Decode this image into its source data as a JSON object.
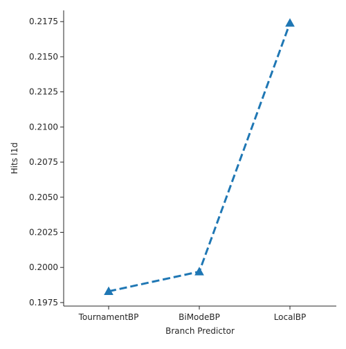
{
  "chart_data": {
    "type": "line",
    "title": "",
    "xlabel": "Branch Predictor",
    "ylabel": "Hits l1d",
    "categories": [
      "TournamentBP",
      "BiModeBP",
      "LocalBP"
    ],
    "series": [
      {
        "values": [
          0.1983,
          0.1997,
          0.2174
        ]
      }
    ],
    "yticks": [
      "0.1975",
      "0.2000",
      "0.2025",
      "0.2050",
      "0.2075",
      "0.2100",
      "0.2125",
      "0.2150",
      "0.2175"
    ],
    "ylim": [
      0.19725,
      0.2183
    ],
    "grid": false,
    "line_style": "dashed",
    "marker": "triangle",
    "line_color": "#1f77b4"
  }
}
